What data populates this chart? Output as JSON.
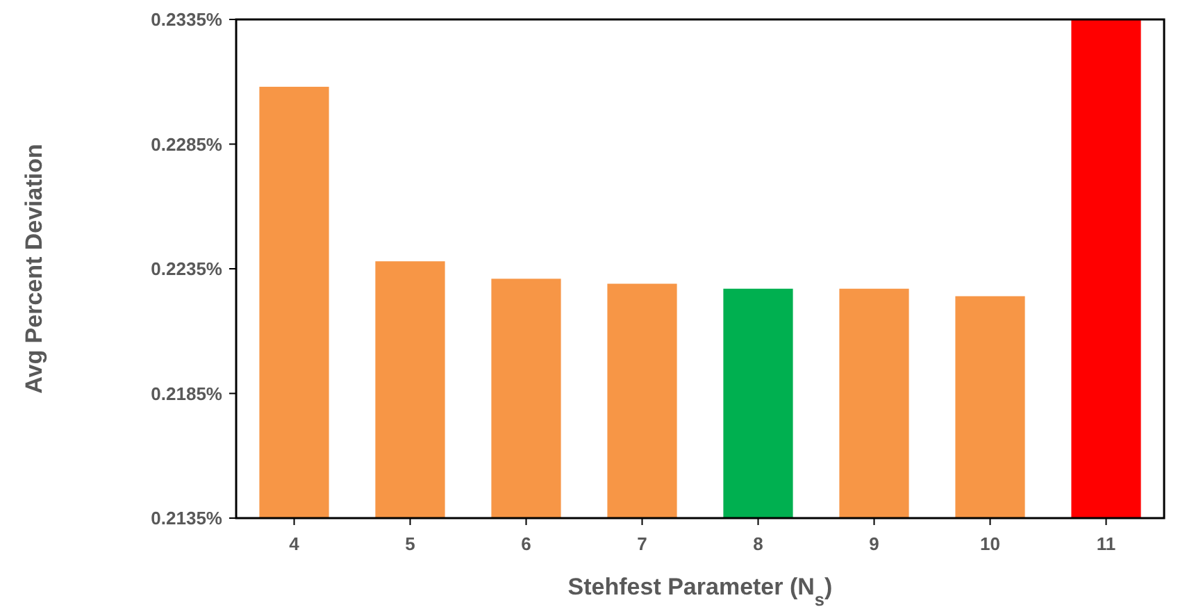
{
  "chart_data": {
    "type": "bar",
    "xlabel": "Stehfest Parameter (N$_{s}$)",
    "ylabel": "Avg Percent Deviation",
    "categories": [
      "4",
      "5",
      "6",
      "7",
      "8",
      "9",
      "10",
      "11"
    ],
    "values": [
      0.2308,
      0.2238,
      0.2231,
      0.2229,
      0.2227,
      0.2227,
      0.2224,
      0.2335
    ],
    "colors": [
      "#f79646",
      "#f79646",
      "#f79646",
      "#f79646",
      "#00b050",
      "#f79646",
      "#f79646",
      "#ff0000"
    ],
    "ylim": [
      0.2135,
      0.2335
    ],
    "yticks": [
      {
        "value": 0.2135,
        "label": "0.2135%"
      },
      {
        "value": 0.2185,
        "label": "0.2185%"
      },
      {
        "value": 0.2235,
        "label": "0.2235%"
      },
      {
        "value": 0.2285,
        "label": "0.2285%"
      },
      {
        "value": 0.2335,
        "label": "0.2335%"
      }
    ],
    "grid": false
  }
}
